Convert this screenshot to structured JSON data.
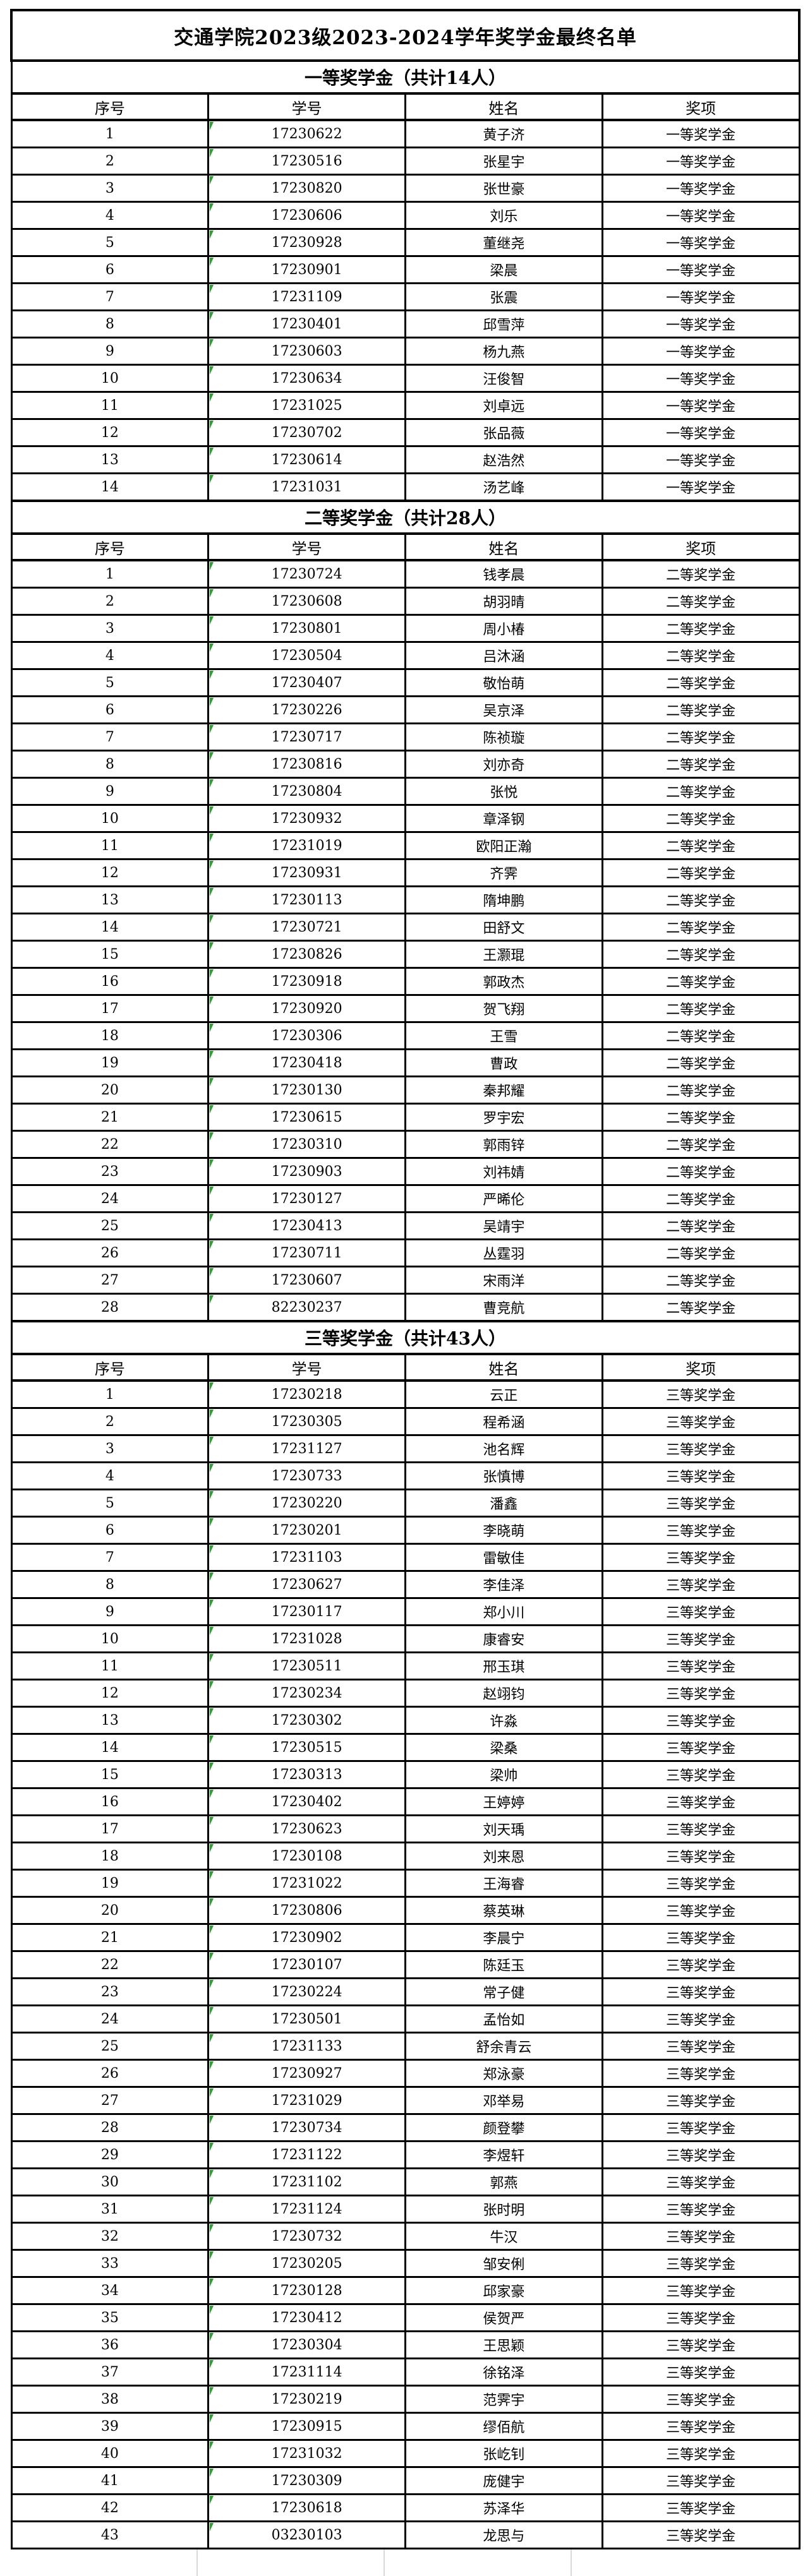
{
  "title": "交通学院2023级2023-2024学年奖学金最终名单",
  "columns": [
    "序号",
    "学号",
    "姓名",
    "奖项"
  ],
  "colors": {
    "border_black": "#000000",
    "error_triangle_green": "#2e9d32",
    "gridline_gray": "#d8d8d8"
  },
  "sections": [
    {
      "header": "一等奖学金（共计14人）",
      "rows": [
        {
          "no": "1",
          "id": "17230622",
          "name": "黄子济",
          "award": "一等奖学金"
        },
        {
          "no": "2",
          "id": "17230516",
          "name": "张星宇",
          "award": "一等奖学金"
        },
        {
          "no": "3",
          "id": "17230820",
          "name": "张世豪",
          "award": "一等奖学金"
        },
        {
          "no": "4",
          "id": "17230606",
          "name": "刘乐",
          "award": "一等奖学金"
        },
        {
          "no": "5",
          "id": "17230928",
          "name": "董继尧",
          "award": "一等奖学金"
        },
        {
          "no": "6",
          "id": "17230901",
          "name": "梁晨",
          "award": "一等奖学金"
        },
        {
          "no": "7",
          "id": "17231109",
          "name": "张震",
          "award": "一等奖学金"
        },
        {
          "no": "8",
          "id": "17230401",
          "name": "邱雪萍",
          "award": "一等奖学金"
        },
        {
          "no": "9",
          "id": "17230603",
          "name": "杨九燕",
          "award": "一等奖学金"
        },
        {
          "no": "10",
          "id": "17230634",
          "name": "汪俊智",
          "award": "一等奖学金"
        },
        {
          "no": "11",
          "id": "17231025",
          "name": "刘卓远",
          "award": "一等奖学金"
        },
        {
          "no": "12",
          "id": "17230702",
          "name": "张品薇",
          "award": "一等奖学金"
        },
        {
          "no": "13",
          "id": "17230614",
          "name": "赵浩然",
          "award": "一等奖学金"
        },
        {
          "no": "14",
          "id": "17231031",
          "name": "汤艺峰",
          "award": "一等奖学金"
        }
      ]
    },
    {
      "header": "二等奖学金（共计28人）",
      "rows": [
        {
          "no": "1",
          "id": "17230724",
          "name": "钱孝晨",
          "award": "二等奖学金"
        },
        {
          "no": "2",
          "id": "17230608",
          "name": "胡羽晴",
          "award": "二等奖学金"
        },
        {
          "no": "3",
          "id": "17230801",
          "name": "周小椿",
          "award": "二等奖学金"
        },
        {
          "no": "4",
          "id": "17230504",
          "name": "吕沐涵",
          "award": "二等奖学金"
        },
        {
          "no": "5",
          "id": "17230407",
          "name": "敬怡萌",
          "award": "二等奖学金"
        },
        {
          "no": "6",
          "id": "17230226",
          "name": "吴京泽",
          "award": "二等奖学金"
        },
        {
          "no": "7",
          "id": "17230717",
          "name": "陈祯璇",
          "award": "二等奖学金"
        },
        {
          "no": "8",
          "id": "17230816",
          "name": "刘亦奇",
          "award": "二等奖学金"
        },
        {
          "no": "9",
          "id": "17230804",
          "name": "张悦",
          "award": "二等奖学金"
        },
        {
          "no": "10",
          "id": "17230932",
          "name": "章泽钢",
          "award": "二等奖学金"
        },
        {
          "no": "11",
          "id": "17231019",
          "name": "欧阳正瀚",
          "award": "二等奖学金"
        },
        {
          "no": "12",
          "id": "17230931",
          "name": "齐霁",
          "award": "二等奖学金"
        },
        {
          "no": "13",
          "id": "17230113",
          "name": "隋坤鹏",
          "award": "二等奖学金"
        },
        {
          "no": "14",
          "id": "17230721",
          "name": "田舒文",
          "award": "二等奖学金"
        },
        {
          "no": "15",
          "id": "17230826",
          "name": "王灏琨",
          "award": "二等奖学金"
        },
        {
          "no": "16",
          "id": "17230918",
          "name": "郭政杰",
          "award": "二等奖学金"
        },
        {
          "no": "17",
          "id": "17230920",
          "name": "贺飞翔",
          "award": "二等奖学金"
        },
        {
          "no": "18",
          "id": "17230306",
          "name": "王雪",
          "award": "二等奖学金"
        },
        {
          "no": "19",
          "id": "17230418",
          "name": "曹政",
          "award": "二等奖学金"
        },
        {
          "no": "20",
          "id": "17230130",
          "name": "秦邦耀",
          "award": "二等奖学金"
        },
        {
          "no": "21",
          "id": "17230615",
          "name": "罗宇宏",
          "award": "二等奖学金"
        },
        {
          "no": "22",
          "id": "17230310",
          "name": "郭雨锌",
          "award": "二等奖学金"
        },
        {
          "no": "23",
          "id": "17230903",
          "name": "刘祎婧",
          "award": "二等奖学金"
        },
        {
          "no": "24",
          "id": "17230127",
          "name": "严晞伦",
          "award": "二等奖学金"
        },
        {
          "no": "25",
          "id": "17230413",
          "name": "吴靖宇",
          "award": "二等奖学金"
        },
        {
          "no": "26",
          "id": "17230711",
          "name": "丛霆羽",
          "award": "二等奖学金"
        },
        {
          "no": "27",
          "id": "17230607",
          "name": "宋雨洋",
          "award": "二等奖学金"
        },
        {
          "no": "28",
          "id": "82230237",
          "name": "曹竞航",
          "award": "二等奖学金"
        }
      ]
    },
    {
      "header": "三等奖学金（共计43人）",
      "rows": [
        {
          "no": "1",
          "id": "17230218",
          "name": "云正",
          "award": "三等奖学金"
        },
        {
          "no": "2",
          "id": "17230305",
          "name": "程希涵",
          "award": "三等奖学金"
        },
        {
          "no": "3",
          "id": "17231127",
          "name": "池名辉",
          "award": "三等奖学金"
        },
        {
          "no": "4",
          "id": "17230733",
          "name": "张慎博",
          "award": "三等奖学金"
        },
        {
          "no": "5",
          "id": "17230220",
          "name": "潘鑫",
          "award": "三等奖学金"
        },
        {
          "no": "6",
          "id": "17230201",
          "name": "李晓萌",
          "award": "三等奖学金"
        },
        {
          "no": "7",
          "id": "17231103",
          "name": "雷敏佳",
          "award": "三等奖学金"
        },
        {
          "no": "8",
          "id": "17230627",
          "name": "李佳泽",
          "award": "三等奖学金"
        },
        {
          "no": "9",
          "id": "17230117",
          "name": "郑小川",
          "award": "三等奖学金"
        },
        {
          "no": "10",
          "id": "17231028",
          "name": "康睿安",
          "award": "三等奖学金"
        },
        {
          "no": "11",
          "id": "17230511",
          "name": "邢玉琪",
          "award": "三等奖学金"
        },
        {
          "no": "12",
          "id": "17230234",
          "name": "赵翊钧",
          "award": "三等奖学金"
        },
        {
          "no": "13",
          "id": "17230302",
          "name": "许淼",
          "award": "三等奖学金"
        },
        {
          "no": "14",
          "id": "17230515",
          "name": "梁桑",
          "award": "三等奖学金"
        },
        {
          "no": "15",
          "id": "17230313",
          "name": "梁帅",
          "award": "三等奖学金"
        },
        {
          "no": "16",
          "id": "17230402",
          "name": "王婷婷",
          "award": "三等奖学金"
        },
        {
          "no": "17",
          "id": "17230623",
          "name": "刘天瑀",
          "award": "三等奖学金"
        },
        {
          "no": "18",
          "id": "17230108",
          "name": "刘来恩",
          "award": "三等奖学金"
        },
        {
          "no": "19",
          "id": "17231022",
          "name": "王海睿",
          "award": "三等奖学金"
        },
        {
          "no": "20",
          "id": "17230806",
          "name": "蔡英琳",
          "award": "三等奖学金"
        },
        {
          "no": "21",
          "id": "17230902",
          "name": "李晨宁",
          "award": "三等奖学金"
        },
        {
          "no": "22",
          "id": "17230107",
          "name": "陈廷玉",
          "award": "三等奖学金"
        },
        {
          "no": "23",
          "id": "17230224",
          "name": "常子健",
          "award": "三等奖学金"
        },
        {
          "no": "24",
          "id": "17230501",
          "name": "孟怡如",
          "award": "三等奖学金"
        },
        {
          "no": "25",
          "id": "17231133",
          "name": "舒余青云",
          "award": "三等奖学金"
        },
        {
          "no": "26",
          "id": "17230927",
          "name": "郑泳豪",
          "award": "三等奖学金"
        },
        {
          "no": "27",
          "id": "17231029",
          "name": "邓举易",
          "award": "三等奖学金"
        },
        {
          "no": "28",
          "id": "17230734",
          "name": "颜登攀",
          "award": "三等奖学金"
        },
        {
          "no": "29",
          "id": "17231122",
          "name": "李煜轩",
          "award": "三等奖学金"
        },
        {
          "no": "30",
          "id": "17231102",
          "name": "郭燕",
          "award": "三等奖学金"
        },
        {
          "no": "31",
          "id": "17231124",
          "name": "张时明",
          "award": "三等奖学金"
        },
        {
          "no": "32",
          "id": "17230732",
          "name": "牛汉",
          "award": "三等奖学金"
        },
        {
          "no": "33",
          "id": "17230205",
          "name": "邹安俐",
          "award": "三等奖学金"
        },
        {
          "no": "34",
          "id": "17230128",
          "name": "邱家豪",
          "award": "三等奖学金"
        },
        {
          "no": "35",
          "id": "17230412",
          "name": "侯贺严",
          "award": "三等奖学金"
        },
        {
          "no": "36",
          "id": "17230304",
          "name": "王思颖",
          "award": "三等奖学金"
        },
        {
          "no": "37",
          "id": "17231114",
          "name": "徐铭泽",
          "award": "三等奖学金"
        },
        {
          "no": "38",
          "id": "17230219",
          "name": "范霁宇",
          "award": "三等奖学金"
        },
        {
          "no": "39",
          "id": "17230915",
          "name": "缪佰航",
          "award": "三等奖学金"
        },
        {
          "no": "40",
          "id": "17231032",
          "name": "张屹钊",
          "award": "三等奖学金"
        },
        {
          "no": "41",
          "id": "17230309",
          "name": "庞健宇",
          "award": "三等奖学金"
        },
        {
          "no": "42",
          "id": "17230618",
          "name": "苏泽华",
          "award": "三等奖学金"
        },
        {
          "no": "43",
          "id": "03230103",
          "name": "龙思与",
          "award": "三等奖学金"
        }
      ]
    }
  ]
}
